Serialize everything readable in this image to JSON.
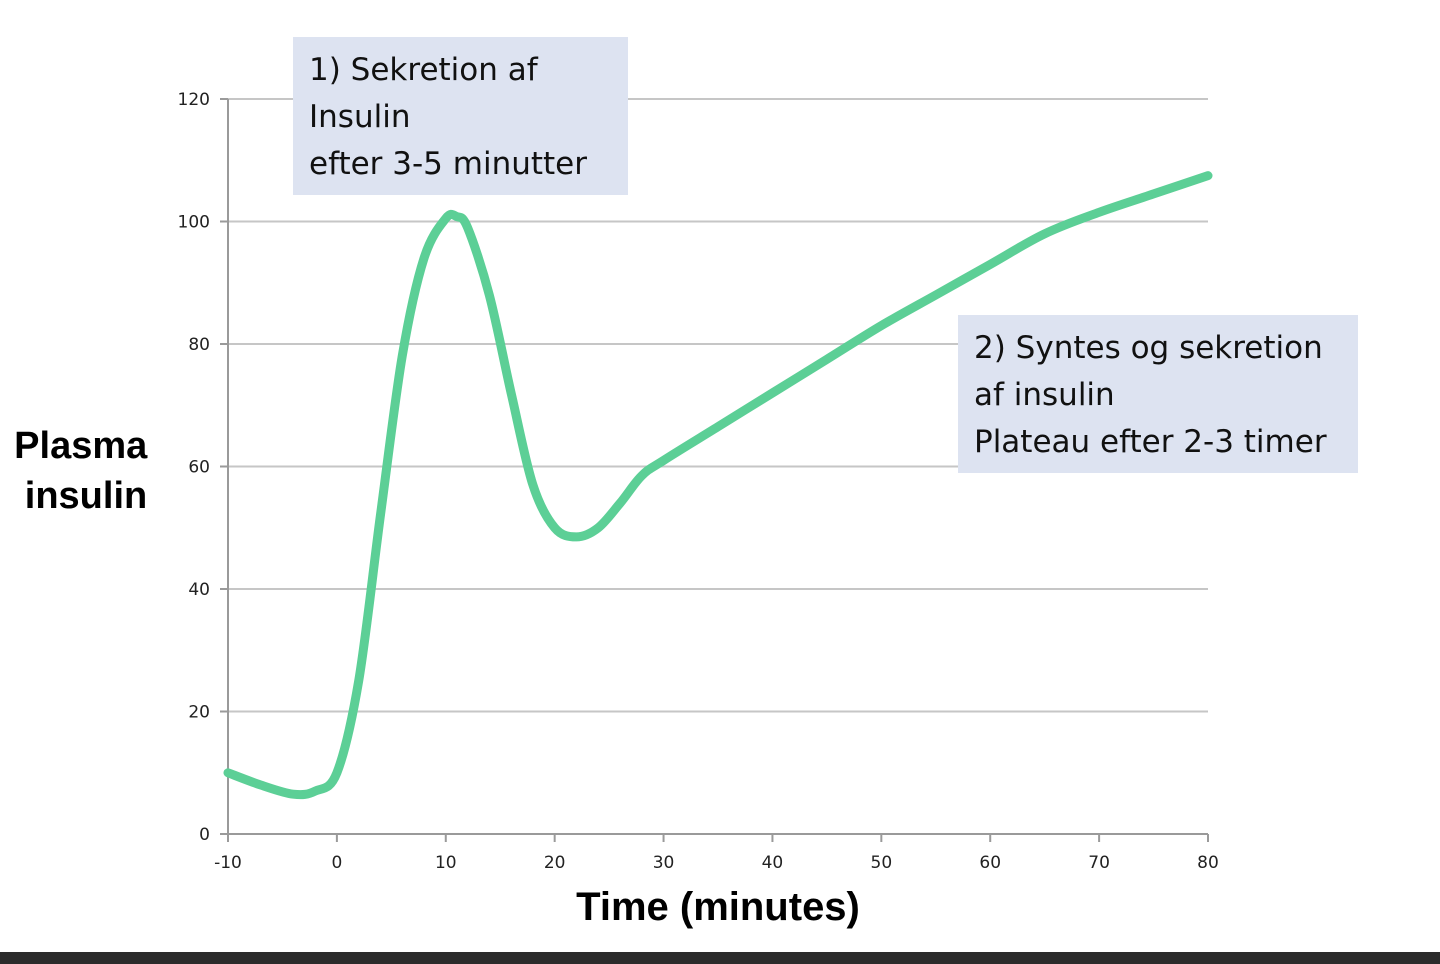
{
  "chart_data": {
    "type": "line",
    "title": "",
    "xlabel": "Time (minutes)",
    "ylabel": [
      "Plasma",
      "insulin"
    ],
    "xlim": [
      -10,
      80
    ],
    "ylim": [
      0,
      120
    ],
    "x_ticks": [
      -10,
      0,
      10,
      20,
      30,
      40,
      50,
      60,
      70,
      80
    ],
    "y_ticks": [
      0,
      20,
      40,
      60,
      80,
      100,
      120
    ],
    "grid": true,
    "line_color": "#5ccf96",
    "series": [
      {
        "x": [
          -10,
          -7,
          -4,
          -2,
          0,
          2,
          4,
          6,
          8,
          10,
          11,
          12,
          14,
          16,
          18,
          20,
          22,
          24,
          26,
          28,
          30,
          35,
          40,
          45,
          50,
          55,
          60,
          65,
          70,
          75,
          80
        ],
        "values": [
          10,
          8,
          6.5,
          7,
          10,
          25,
          52,
          78,
          94,
          100.5,
          100.8,
          99,
          88,
          72,
          57,
          50,
          48.5,
          50,
          54,
          58.5,
          61,
          66.5,
          72,
          77.5,
          83,
          88,
          93,
          98,
          101.5,
          104.5,
          107.5
        ]
      }
    ],
    "annotations": [
      {
        "lines": [
          "1) Sekretion af",
          "Insulin",
          "efter 3-5 minutter"
        ],
        "color": "#dde3f1"
      },
      {
        "lines": [
          "2) Syntes og sekretion",
          "af insulin",
          "Plateau efter 2-3 timer"
        ],
        "color": "#dde3f1"
      }
    ]
  }
}
